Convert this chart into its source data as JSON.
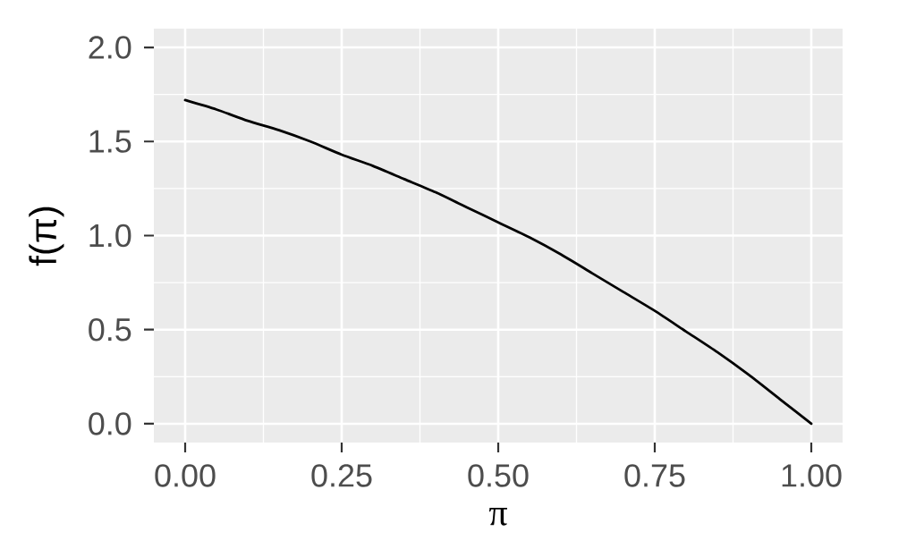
{
  "chart_data": {
    "type": "line",
    "xlabel": "π",
    "ylabel": "f(π)",
    "x": [
      0,
      0.05,
      0.1,
      0.15,
      0.2,
      0.25,
      0.3,
      0.35,
      0.4,
      0.45,
      0.5,
      0.55,
      0.6,
      0.65,
      0.7,
      0.75,
      0.8,
      0.85,
      0.9,
      0.95,
      1
    ],
    "values": [
      1.72,
      1.67,
      1.61,
      1.56,
      1.5,
      1.43,
      1.37,
      1.3,
      1.23,
      1.15,
      1.07,
      0.99,
      0.9,
      0.8,
      0.7,
      0.6,
      0.49,
      0.38,
      0.26,
      0.13,
      0
    ],
    "color": "#000000",
    "xlim": [
      -0.05,
      1.05
    ],
    "ylim": [
      -0.1,
      2.1
    ],
    "xticks": [
      {
        "value": 0,
        "label": "0.00"
      },
      {
        "value": 0.25,
        "label": "0.25"
      },
      {
        "value": 0.5,
        "label": "0.50"
      },
      {
        "value": 0.75,
        "label": "0.75"
      },
      {
        "value": 1,
        "label": "1.00"
      }
    ],
    "yticks": [
      {
        "value": 0,
        "label": "0.0"
      },
      {
        "value": 0.5,
        "label": "0.5"
      },
      {
        "value": 1,
        "label": "1.0"
      },
      {
        "value": 1.5,
        "label": "1.5"
      },
      {
        "value": 2,
        "label": "2.0"
      }
    ],
    "grid": true
  }
}
